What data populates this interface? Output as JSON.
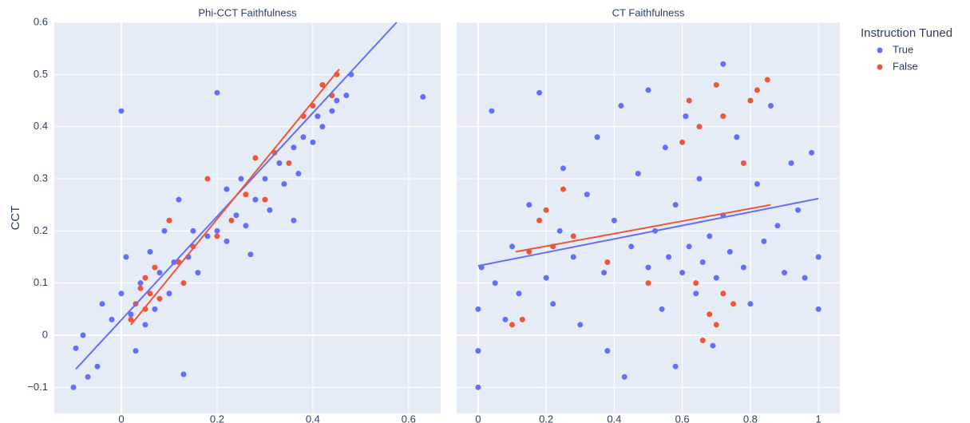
{
  "chart_data": [
    {
      "type": "scatter",
      "title": "Phi-CCT Faithfulness",
      "ylabel": "CCT",
      "xlim": [
        -0.14,
        0.667
      ],
      "xticks": [
        0,
        0.2,
        0.4,
        0.6
      ],
      "ylim": [
        -0.15,
        0.6
      ],
      "yticks": [
        {
          "value": -0.1,
          "label": "−0.1"
        },
        0,
        0.1,
        0.2,
        0.3,
        0.4,
        0.5,
        0.6
      ],
      "grid": true,
      "series": [
        {
          "name": "True",
          "color": "#636efa",
          "x": [
            -0.1,
            -0.095,
            -0.08,
            -0.07,
            -0.05,
            -0.04,
            -0.02,
            0,
            0,
            0.01,
            0.02,
            0.03,
            0.04,
            0.05,
            0.06,
            0.07,
            0.08,
            0.09,
            0.1,
            0.11,
            0.12,
            0.13,
            0.14,
            0.15,
            0.16,
            0.18,
            0.2,
            0.2,
            0.22,
            0.22,
            0.24,
            0.25,
            0.26,
            0.27,
            0.28,
            0.3,
            0.31,
            0.33,
            0.34,
            0.36,
            0.37,
            0.38,
            0.4,
            0.41,
            0.42,
            0.44,
            0.45,
            0.47,
            0.48,
            0.63,
            0.36
          ],
          "values": [
            -0.1,
            -0.025,
            0,
            -0.08,
            -0.06,
            0.06,
            0.03,
            0.43,
            0.08,
            0.15,
            0.04,
            -0.03,
            0.1,
            0.02,
            0.16,
            0.05,
            0.12,
            0.2,
            0.08,
            0.14,
            0.26,
            -0.075,
            0.15,
            0.2,
            0.12,
            0.19,
            0.465,
            0.2,
            0.28,
            0.18,
            0.23,
            0.3,
            0.21,
            0.155,
            0.26,
            0.3,
            0.24,
            0.33,
            0.29,
            0.36,
            0.31,
            0.38,
            0.37,
            0.42,
            0.4,
            0.43,
            0.45,
            0.46,
            0.5,
            0.457,
            0.22
          ]
        },
        {
          "name": "False",
          "color": "#ef553b",
          "x": [
            0.02,
            0.03,
            0.04,
            0.05,
            0.05,
            0.06,
            0.07,
            0.08,
            0.1,
            0.12,
            0.15,
            0.18,
            0.2,
            0.23,
            0.26,
            0.28,
            0.3,
            0.32,
            0.35,
            0.38,
            0.4,
            0.42,
            0.44,
            0.45,
            0.13
          ],
          "values": [
            0.03,
            0.06,
            0.09,
            0.05,
            0.11,
            0.08,
            0.13,
            0.07,
            0.22,
            0.14,
            0.17,
            0.3,
            0.19,
            0.22,
            0.27,
            0.34,
            0.26,
            0.35,
            0.33,
            0.42,
            0.44,
            0.48,
            0.46,
            0.5,
            0.1
          ]
        },
        {
          "mode": "lines",
          "color": "#636efa",
          "x": [
            -0.095,
            0.575
          ],
          "values": [
            -0.065,
            0.6
          ]
        },
        {
          "mode": "lines",
          "color": "#ef553b",
          "x": [
            0.02,
            0.455
          ],
          "values": [
            0.02,
            0.51
          ]
        }
      ]
    },
    {
      "type": "scatter",
      "title": "CT Faithfulness",
      "shared_y": true,
      "legend_title": "Instruction Tuned",
      "legend": "outside-right",
      "xlim": [
        -0.063,
        1.063
      ],
      "xticks": [
        0,
        0.2,
        0.4,
        0.6,
        0.8,
        1
      ],
      "grid": true,
      "series": [
        {
          "name": "True",
          "color": "#636efa",
          "x": [
            0,
            0,
            0,
            0.01,
            0.04,
            0.05,
            0.08,
            0.1,
            0.12,
            0.15,
            0.18,
            0.2,
            0.22,
            0.24,
            0.25,
            0.28,
            0.3,
            0.32,
            0.35,
            0.37,
            0.38,
            0.4,
            0.42,
            0.43,
            0.45,
            0.47,
            0.5,
            0.5,
            0.52,
            0.54,
            0.55,
            0.56,
            0.58,
            0.58,
            0.6,
            0.61,
            0.62,
            0.64,
            0.65,
            0.66,
            0.68,
            0.7,
            0.72,
            0.72,
            0.74,
            0.76,
            0.78,
            0.8,
            0.82,
            0.84,
            0.86,
            0.88,
            0.9,
            0.92,
            0.94,
            0.96,
            0.98,
            1,
            1,
            0.69
          ],
          "values": [
            -0.1,
            0.05,
            -0.03,
            0.13,
            0.43,
            0.1,
            0.03,
            0.17,
            0.08,
            0.25,
            0.465,
            0.11,
            0.06,
            0.2,
            0.32,
            0.15,
            0.02,
            0.27,
            0.38,
            0.12,
            -0.03,
            0.22,
            0.44,
            -0.08,
            0.17,
            0.31,
            0.13,
            0.47,
            0.2,
            0.05,
            0.36,
            0.15,
            -0.06,
            0.25,
            0.12,
            0.42,
            0.17,
            0.08,
            0.3,
            0.14,
            0.19,
            0.11,
            0.52,
            0.23,
            0.16,
            0.38,
            0.13,
            0.06,
            0.29,
            0.18,
            0.44,
            0.21,
            0.12,
            0.33,
            0.24,
            0.11,
            0.35,
            0.15,
            0.05,
            -0.02
          ]
        },
        {
          "name": "False",
          "color": "#ef553b",
          "x": [
            0.1,
            0.13,
            0.15,
            0.18,
            0.2,
            0.22,
            0.25,
            0.28,
            0.38,
            0.5,
            0.6,
            0.62,
            0.65,
            0.68,
            0.7,
            0.72,
            0.72,
            0.75,
            0.78,
            0.8,
            0.82,
            0.85,
            0.66,
            0.7,
            0.64
          ],
          "values": [
            0.02,
            0.03,
            0.16,
            0.22,
            0.24,
            0.17,
            0.28,
            0.19,
            0.14,
            0.1,
            0.37,
            0.45,
            0.4,
            0.04,
            0.48,
            0.08,
            0.42,
            0.06,
            0.33,
            0.45,
            0.47,
            0.49,
            -0.01,
            0.02,
            0.1
          ]
        },
        {
          "mode": "lines",
          "color": "#636efa",
          "x": [
            0,
            1
          ],
          "values": [
            0.133,
            0.262
          ]
        },
        {
          "mode": "lines",
          "color": "#ef553b",
          "x": [
            0.11,
            0.86
          ],
          "values": [
            0.16,
            0.25
          ]
        }
      ]
    }
  ]
}
